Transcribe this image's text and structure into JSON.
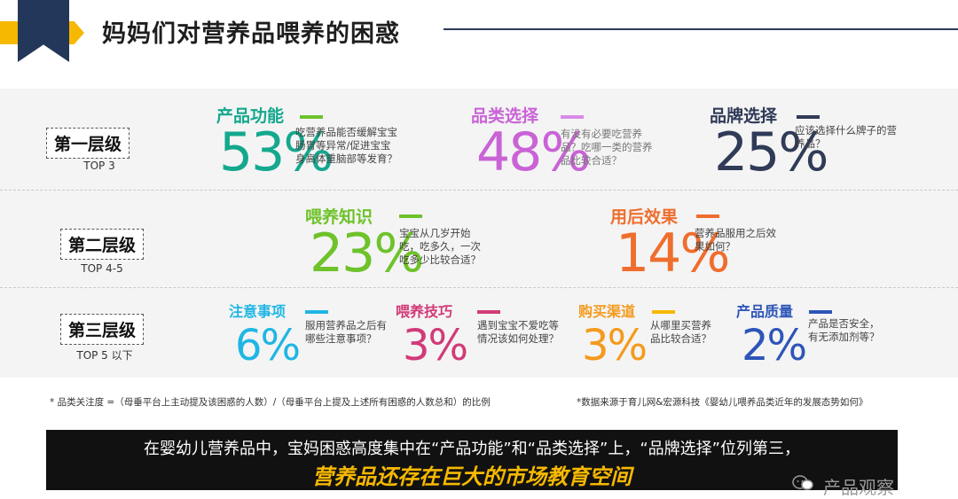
{
  "header": {
    "title": "妈妈们对营养品喂养的困惑"
  },
  "levels": [
    {
      "label": "第一层级",
      "sub": "TOP 3"
    },
    {
      "label": "第二层级",
      "sub": "TOP 4-5"
    },
    {
      "label": "第三层级",
      "sub": "TOP 5 以下"
    }
  ],
  "categories": {
    "product_function": {
      "title": "产品功能",
      "percent": "53%",
      "desc": "吃营养品能否缓解宝宝肠胃等异常/促进宝宝身高体重脑部等发育？",
      "color": "#14a88e"
    },
    "category_choice": {
      "title": "品类选择",
      "percent": "48%",
      "desc": "有没有必要吃营养品？吃哪一类的营养品比较合适？",
      "color": "#c963d6"
    },
    "brand_choice": {
      "title": "品牌选择",
      "percent": "25%",
      "desc": "应该选择什么牌子的营养品？",
      "color": "#2f3b57"
    },
    "feeding_knowledge": {
      "title": "喂养知识",
      "percent": "23%",
      "desc": "宝宝从几岁开始吃，吃多久，一次吃多少比较合适？",
      "color": "#6ec22a"
    },
    "after_effect": {
      "title": "用后效果",
      "percent": "14%",
      "desc": "营养品服用之后效果如何？",
      "color": "#ef6e2e"
    },
    "precautions": {
      "title": "注意事项",
      "percent": "6%",
      "desc": "服用营养品之后有哪些注意事项？",
      "color": "#1fb6e4"
    },
    "feeding_tips": {
      "title": "喂养技巧",
      "percent": "3%",
      "desc": "遇到宝宝不爱吃等情况该如何处理？",
      "color": "#d23a78"
    },
    "purchase_channel": {
      "title": "购买渠道",
      "percent": "3%",
      "desc": "从哪里买营养品比较合适？",
      "color": "#f49a1c"
    },
    "product_quality": {
      "title": "产品质量",
      "percent": "2%",
      "desc": "产品是否安全，有无添加剂等？",
      "color": "#2e55b8"
    }
  },
  "footnotes": {
    "left": "* 品类关注度 =（母垂平台上主动提及该困惑的人数）/（母垂平台上提及上述所有困惑的人数总和）的比例",
    "right": "*数据来源于育儿网&宏源科技《婴幼儿喂养品类近年的发展态势如何》"
  },
  "summary": {
    "line1": "在婴幼儿营养品中，宝妈困惑高度集中在“产品功能”和“品类选择”上，“品牌选择”位列第三，",
    "line2": "营养品还存在巨大的市场教育空间"
  },
  "watermark": {
    "text": "产品观察",
    "icon": "wechat-icon"
  }
}
